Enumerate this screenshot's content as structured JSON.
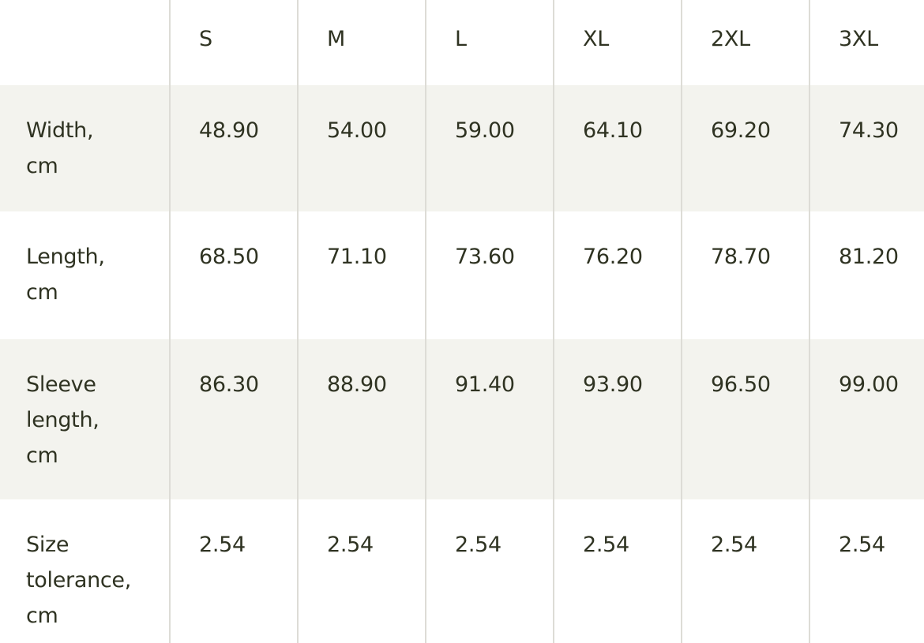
{
  "sizes": [
    "S",
    "M",
    "L",
    "XL",
    "2XL",
    "3XL"
  ],
  "rows": [
    {
      "label": "Width,\ncm",
      "values": [
        "48.90",
        "54.00",
        "59.00",
        "64.10",
        "69.20",
        "74.30"
      ]
    },
    {
      "label": "Length,\ncm",
      "values": [
        "68.50",
        "71.10",
        "73.60",
        "76.20",
        "78.70",
        "81.20"
      ]
    },
    {
      "label": "Sleeve\nlength,\ncm",
      "values": [
        "86.30",
        "88.90",
        "91.40",
        "93.90",
        "96.50",
        "99.00"
      ]
    },
    {
      "label": "Size\ntolerance,\ncm",
      "values": [
        "2.54",
        "2.54",
        "2.54",
        "2.54",
        "2.54",
        "2.54"
      ]
    }
  ],
  "colors": {
    "text": "#2f3322",
    "shaded_row": "#f3f3ee",
    "divider": "#dddcd6"
  }
}
